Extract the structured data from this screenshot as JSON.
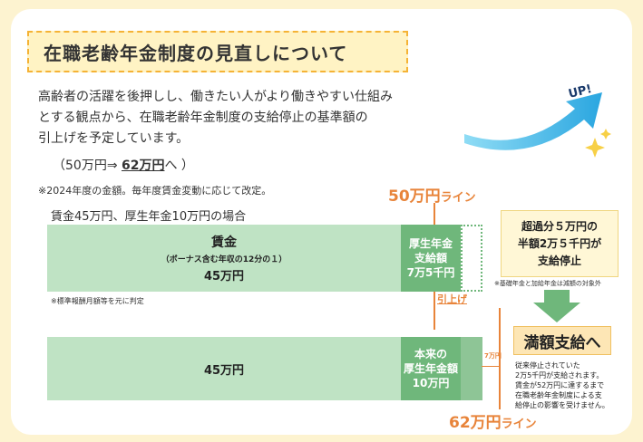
{
  "title": "在職老齢年金制度の見直しについて",
  "intro": [
    "高齢者の活躍を後押しし、働きたい人がより働きやすい仕組み",
    "とする観点から、在職老齢年金制度の支給停止の基準額の",
    "引上げを予定しています。"
  ],
  "example": {
    "prefix": "（50万円⇒ ",
    "highlight": "62万円",
    "suffix": "へ ）"
  },
  "note_year": "※2024年度の金額。毎年度賃金変動に応じて改定。",
  "case_label": "賃金45万円、厚生年金10万円の場合",
  "line50": {
    "num": "50万円",
    "small": "ライン"
  },
  "line62": {
    "num": "62万円",
    "small": "ライン"
  },
  "bar_wage": {
    "title": "賃金",
    "sub": "（ボーナス含む年収の12分の１）",
    "amount": "45万円"
  },
  "bar_pension_reduced": [
    "厚生年金",
    "支給額",
    "7万5千円"
  ],
  "note_standard": "※標準報酬月額等を元に判定",
  "raise_label": "引上げ",
  "bar_wage2": {
    "amount": "45万円"
  },
  "bar_pension_full": [
    "本来の",
    "厚生年金額",
    "10万円"
  ],
  "measure_label": "7万円",
  "result": [
    "超過分５万円の",
    "半額2万５千円が",
    "支給停止"
  ],
  "note_basic": "※基礎年金と加給年金は減額の対象外",
  "full_payment": "満額支給へ",
  "full_desc": [
    "従来停止されていた",
    "2万5千円が支給されます。",
    "賃金が52万円に達するまで",
    "在職老齢年金制度による支",
    "給停止の影響を受けません。"
  ],
  "up_label": "UP!",
  "colors": {
    "background": "#fdf3d0",
    "accent_orange": "#e8843a",
    "bar_light_green": "#bfe3c4",
    "bar_green": "#6fb77b",
    "title_border": "#f5b335",
    "arrow_blue": "#3db8e8"
  }
}
